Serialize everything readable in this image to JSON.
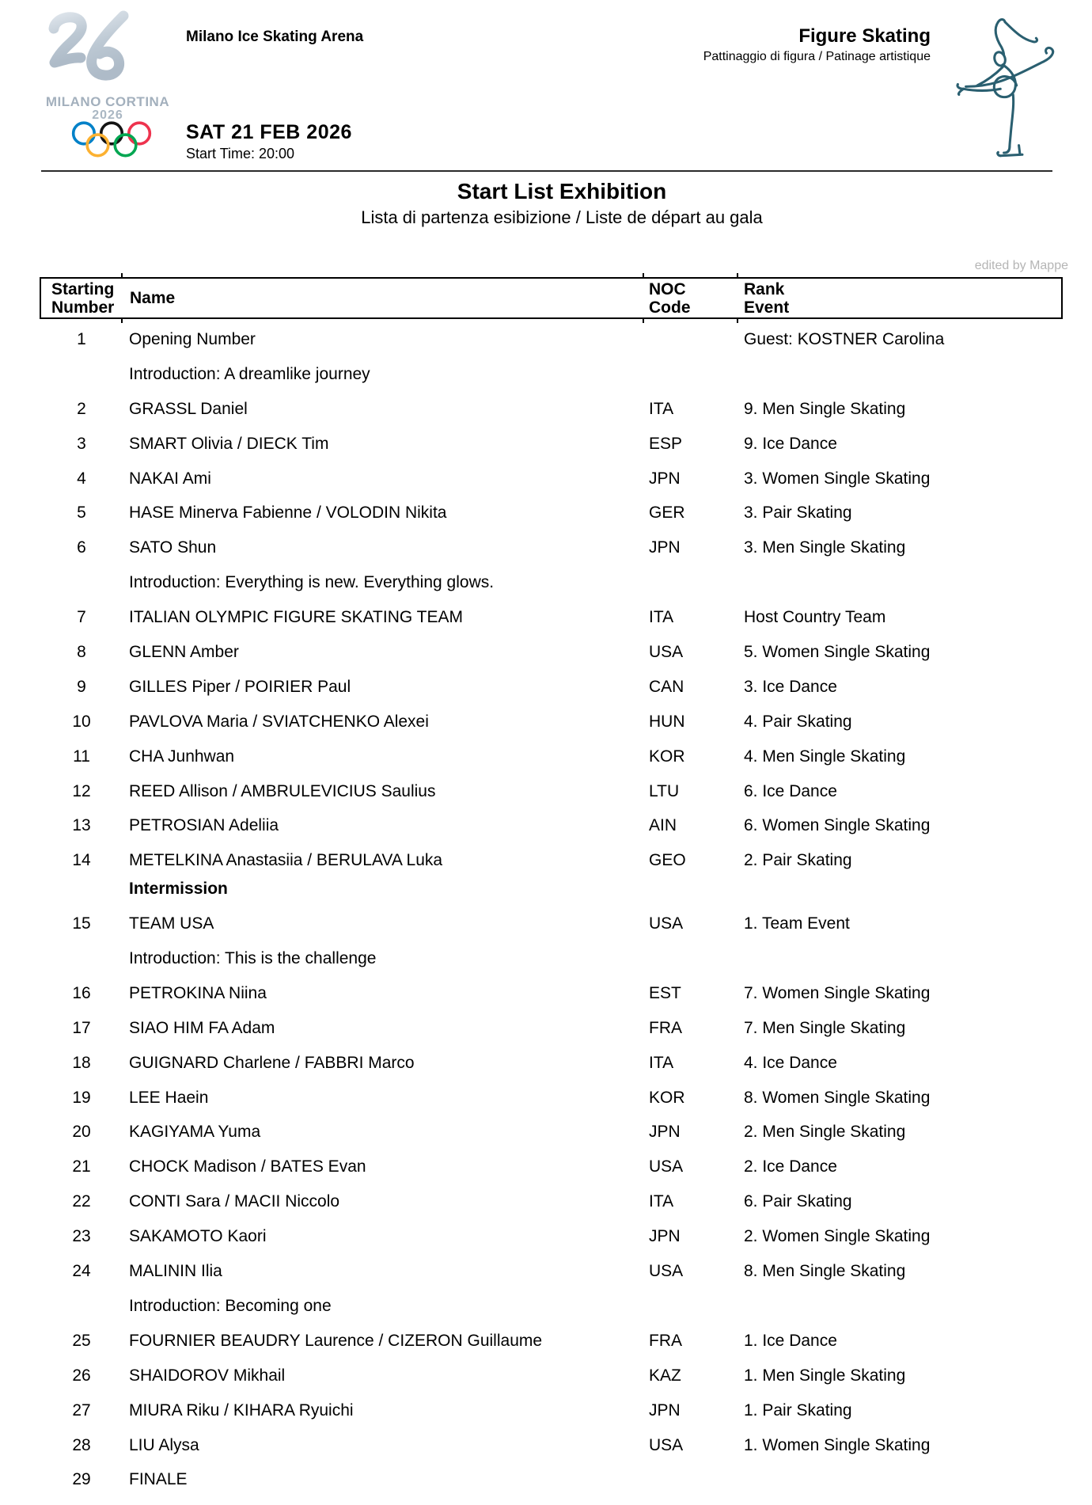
{
  "page": {
    "header": {
      "venue": "Milano Ice Skating Arena",
      "discipline": "Figure Skating",
      "discipline_translation": "Pattinaggio di figura / Patinage artistique",
      "date": "SAT 21 FEB 2026",
      "start_time": "Start Time: 20:00",
      "logo_text": "MILANO CORTINA",
      "logo_year": "2026"
    },
    "title": "Start List Exhibition",
    "subtitle": "Lista di partenza esibizione / Liste de départ au gala",
    "watermark": "edited by Mappe"
  },
  "table": {
    "headers": {
      "starting_number": "Starting\nNumber",
      "name": "Name",
      "noc": "NOC\nCode",
      "rank": "Rank\nEvent"
    },
    "rows": [
      {
        "type": "entry",
        "num": "1",
        "name": "Opening Number",
        "noc": "",
        "rank": "Guest: KOSTNER Carolina"
      },
      {
        "type": "intro",
        "num": "",
        "name": "Introduction: A dreamlike journey",
        "noc": "",
        "rank": ""
      },
      {
        "type": "entry",
        "num": "2",
        "name": "GRASSL Daniel",
        "noc": "ITA",
        "rank": "9. Men Single Skating"
      },
      {
        "type": "entry",
        "num": "3",
        "name": "SMART Olivia / DIECK Tim",
        "noc": "ESP",
        "rank": "9. Ice Dance"
      },
      {
        "type": "entry",
        "num": "4",
        "name": "NAKAI Ami",
        "noc": "JPN",
        "rank": "3. Women Single Skating"
      },
      {
        "type": "entry",
        "num": "5",
        "name": "HASE Minerva Fabienne / VOLODIN Nikita",
        "noc": "GER",
        "rank": "3. Pair Skating"
      },
      {
        "type": "entry",
        "num": "6",
        "name": "SATO Shun",
        "noc": "JPN",
        "rank": "3. Men Single Skating"
      },
      {
        "type": "intro",
        "num": "",
        "name": "Introduction: Everything is new. Everything glows.",
        "noc": "",
        "rank": ""
      },
      {
        "type": "entry",
        "num": "7",
        "name": "ITALIAN OLYMPIC FIGURE SKATING TEAM",
        "noc": "ITA",
        "rank": "Host Country Team"
      },
      {
        "type": "entry",
        "num": "8",
        "name": "GLENN Amber",
        "noc": "USA",
        "rank": "5. Women Single Skating"
      },
      {
        "type": "entry",
        "num": "9",
        "name": "GILLES Piper / POIRIER Paul",
        "noc": "CAN",
        "rank": "3. Ice Dance"
      },
      {
        "type": "entry",
        "num": "10",
        "name": "PAVLOVA Maria / SVIATCHENKO Alexei",
        "noc": "HUN",
        "rank": "4. Pair Skating"
      },
      {
        "type": "entry",
        "num": "11",
        "name": "CHA Junhwan",
        "noc": "KOR",
        "rank": "4. Men Single Skating"
      },
      {
        "type": "entry",
        "num": "12",
        "name": "REED Allison / AMBRULEVICIUS Saulius",
        "noc": "LTU",
        "rank": "6. Ice Dance"
      },
      {
        "type": "entry",
        "num": "13",
        "name": "PETROSIAN Adeliia",
        "noc": "AIN",
        "rank": "6. Women Single Skating"
      },
      {
        "type": "entry",
        "num": "14",
        "name": "METELKINA Anastasiia / BERULAVA Luka",
        "noc": "GEO",
        "rank": "2. Pair Skating"
      },
      {
        "type": "intermission",
        "num": "",
        "name": "Intermission",
        "noc": "",
        "rank": ""
      },
      {
        "type": "entry",
        "num": "15",
        "name": "TEAM USA",
        "noc": "USA",
        "rank": "1. Team Event"
      },
      {
        "type": "intro",
        "num": "",
        "name": "Introduction: This is the challenge",
        "noc": "",
        "rank": ""
      },
      {
        "type": "entry",
        "num": "16",
        "name": "PETROKINA Niina",
        "noc": "EST",
        "rank": "7. Women Single Skating"
      },
      {
        "type": "entry",
        "num": "17",
        "name": "SIAO HIM FA Adam",
        "noc": "FRA",
        "rank": "7. Men Single Skating"
      },
      {
        "type": "entry",
        "num": "18",
        "name": "GUIGNARD Charlene / FABBRI Marco",
        "noc": "ITA",
        "rank": "4. Ice Dance"
      },
      {
        "type": "entry",
        "num": "19",
        "name": "LEE Haein",
        "noc": "KOR",
        "rank": "8. Women Single Skating"
      },
      {
        "type": "entry",
        "num": "20",
        "name": "KAGIYAMA Yuma",
        "noc": "JPN",
        "rank": "2. Men Single Skating"
      },
      {
        "type": "entry",
        "num": "21",
        "name": "CHOCK Madison / BATES Evan",
        "noc": "USA",
        "rank": "2. Ice Dance"
      },
      {
        "type": "entry",
        "num": "22",
        "name": "CONTI Sara / MACII Niccolo",
        "noc": "ITA",
        "rank": "6. Pair Skating"
      },
      {
        "type": "entry",
        "num": "23",
        "name": "SAKAMOTO Kaori",
        "noc": "JPN",
        "rank": "2. Women Single Skating"
      },
      {
        "type": "entry",
        "num": "24",
        "name": "MALININ Ilia",
        "noc": "USA",
        "rank": "8. Men Single Skating"
      },
      {
        "type": "intro",
        "num": "",
        "name": "Introduction: Becoming one",
        "noc": "",
        "rank": ""
      },
      {
        "type": "entry",
        "num": "25",
        "name": "FOURNIER BEAUDRY Laurence / CIZERON Guillaume",
        "noc": "FRA",
        "rank": "1. Ice Dance"
      },
      {
        "type": "entry",
        "num": "26",
        "name": "SHAIDOROV Mikhail",
        "noc": "KAZ",
        "rank": "1. Men Single Skating"
      },
      {
        "type": "entry",
        "num": "27",
        "name": "MIURA Riku / KIHARA Ryuichi",
        "noc": "JPN",
        "rank": "1. Pair Skating"
      },
      {
        "type": "entry",
        "num": "28",
        "name": "LIU Alysa",
        "noc": "USA",
        "rank": "1. Women Single Skating"
      },
      {
        "type": "entry",
        "num": "29",
        "name": "FINALE",
        "noc": "",
        "rank": ""
      }
    ]
  },
  "colors": {
    "text": "#000000",
    "watermark_gray": "#b5b5b5",
    "pictogram_teal": "#2a5f70",
    "logo_silver": "#b8c4d0",
    "ring_blue": "#0081C8",
    "ring_yellow": "#FCB131",
    "ring_black": "#000000",
    "ring_green": "#00A651",
    "ring_red": "#EE334E"
  }
}
